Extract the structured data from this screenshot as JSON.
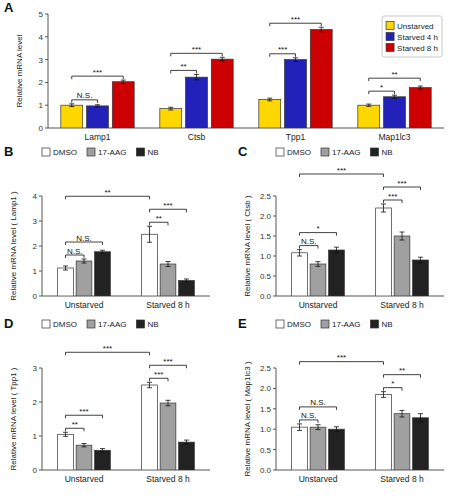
{
  "chart_data": [
    {
      "type": "bar",
      "title": "A",
      "categories": [
        "Lamp1",
        "Ctsb",
        "Tpp1",
        "Map1lc3"
      ],
      "series": [
        {
          "name": "Unstarved",
          "color": "#FFD700",
          "values": [
            1.0,
            0.85,
            1.25,
            1.0
          ],
          "errors": [
            0.06,
            0.06,
            0.06,
            0.05
          ]
        },
        {
          "name": "Starved 4 h",
          "color": "#2222BB",
          "values": [
            0.97,
            2.23,
            3.0,
            1.37
          ],
          "errors": [
            0.05,
            0.12,
            0.08,
            0.07
          ]
        },
        {
          "name": "Starved 8 h",
          "color": "#CC0000",
          "values": [
            2.03,
            3.02,
            4.32,
            1.77
          ],
          "errors": [
            0.07,
            0.08,
            0.1,
            0.07
          ]
        }
      ],
      "ylabel": "Relative mRNA level",
      "ylim": [
        0,
        5.0
      ],
      "yticks": [
        0,
        1,
        2,
        3,
        4,
        5
      ],
      "legend": "upper right",
      "grid": false,
      "annotations": [
        {
          "text": "N.S.",
          "from": {
            "category": "Lamp1",
            "series": "Unstarved"
          },
          "to": {
            "category": "Lamp1",
            "series": "Starved 4 h"
          }
        },
        {
          "text": "***",
          "from": {
            "category": "Lamp1",
            "series": "Unstarved"
          },
          "to": {
            "category": "Lamp1",
            "series": "Starved 8 h"
          }
        },
        {
          "text": "**",
          "from": {
            "category": "Ctsb",
            "series": "Unstarved"
          },
          "to": {
            "category": "Ctsb",
            "series": "Starved 4 h"
          }
        },
        {
          "text": "***",
          "from": {
            "category": "Ctsb",
            "series": "Unstarved"
          },
          "to": {
            "category": "Ctsb",
            "series": "Starved 8 h"
          }
        },
        {
          "text": "***",
          "from": {
            "category": "Tpp1",
            "series": "Unstarved"
          },
          "to": {
            "category": "Tpp1",
            "series": "Starved 4 h"
          }
        },
        {
          "text": "***",
          "from": {
            "category": "Tpp1",
            "series": "Unstarved"
          },
          "to": {
            "category": "Tpp1",
            "series": "Starved 8 h"
          }
        },
        {
          "text": "*",
          "from": {
            "category": "Map1lc3",
            "series": "Unstarved"
          },
          "to": {
            "category": "Map1lc3",
            "series": "Starved 4 h"
          }
        },
        {
          "text": "**",
          "from": {
            "category": "Map1lc3",
            "series": "Unstarved"
          },
          "to": {
            "category": "Map1lc3",
            "series": "Starved 8 h"
          }
        }
      ]
    },
    {
      "type": "bar",
      "title": "B",
      "categories": [
        "Unstarved",
        "Starved 8 h"
      ],
      "series": [
        {
          "name": "DMSO",
          "color": "#FFFFFF",
          "values": [
            1.12,
            2.47
          ],
          "errors": [
            0.08,
            0.32
          ]
        },
        {
          "name": "17-AAG",
          "color": "#A0A0A0",
          "values": [
            1.4,
            1.28
          ],
          "errors": [
            0.08,
            0.1
          ]
        },
        {
          "name": "NB",
          "color": "#222222",
          "values": [
            1.77,
            0.62
          ],
          "errors": [
            0.06,
            0.06
          ]
        }
      ],
      "ylabel": "Relative mRNA level ( Lamp1 )",
      "ylim": [
        0,
        4.0
      ],
      "yticks": [
        0,
        1,
        2,
        3,
        4
      ],
      "legend": "top",
      "grid": false,
      "annotations": [
        {
          "text": "N.S.",
          "from": {
            "category": "Unstarved",
            "series": "DMSO"
          },
          "to": {
            "category": "Unstarved",
            "series": "17-AAG"
          }
        },
        {
          "text": "N.S.",
          "from": {
            "category": "Unstarved",
            "series": "DMSO"
          },
          "to": {
            "category": "Unstarved",
            "series": "NB"
          }
        },
        {
          "text": "**",
          "from": {
            "category": "Starved 8 h",
            "series": "DMSO"
          },
          "to": {
            "category": "Starved 8 h",
            "series": "17-AAG"
          }
        },
        {
          "text": "***",
          "from": {
            "category": "Starved 8 h",
            "series": "DMSO"
          },
          "to": {
            "category": "Starved 8 h",
            "series": "NB"
          }
        },
        {
          "text": "**",
          "from": {
            "category": "Unstarved",
            "series": "DMSO"
          },
          "to": {
            "category": "Starved 8 h",
            "series": "DMSO"
          }
        }
      ]
    },
    {
      "type": "bar",
      "title": "C",
      "categories": [
        "Unstarved",
        "Starved 8 h"
      ],
      "series": [
        {
          "name": "DMSO",
          "color": "#FFFFFF",
          "values": [
            1.08,
            2.2
          ],
          "errors": [
            0.08,
            0.1
          ]
        },
        {
          "name": "17-AAG",
          "color": "#A0A0A0",
          "values": [
            0.8,
            1.5
          ],
          "errors": [
            0.06,
            0.1
          ]
        },
        {
          "name": "NB",
          "color": "#222222",
          "values": [
            1.15,
            0.9
          ],
          "errors": [
            0.07,
            0.07
          ]
        }
      ],
      "ylabel": "Relative mRNA level ( Ctsb )",
      "ylim": [
        0,
        2.5
      ],
      "yticks": [
        {
          "value": 0,
          "label": "0.0"
        },
        0.5,
        {
          "value": 1,
          "label": "1.0"
        },
        1.5,
        {
          "value": 2,
          "label": "2.0"
        },
        2.5
      ],
      "legend": "top",
      "grid": false,
      "annotations": [
        {
          "text": "N.S.",
          "from": {
            "category": "Unstarved",
            "series": "DMSO"
          },
          "to": {
            "category": "Unstarved",
            "series": "17-AAG"
          }
        },
        {
          "text": "*",
          "from": {
            "category": "Unstarved",
            "series": "DMSO"
          },
          "to": {
            "category": "Unstarved",
            "series": "NB"
          }
        },
        {
          "text": "***",
          "from": {
            "category": "Starved 8 h",
            "series": "DMSO"
          },
          "to": {
            "category": "Starved 8 h",
            "series": "17-AAG"
          }
        },
        {
          "text": "***",
          "from": {
            "category": "Starved 8 h",
            "series": "DMSO"
          },
          "to": {
            "category": "Starved 8 h",
            "series": "NB"
          }
        },
        {
          "text": "***",
          "from": {
            "category": "Unstarved",
            "series": "DMSO"
          },
          "to": {
            "category": "Starved 8 h",
            "series": "DMSO"
          }
        }
      ]
    },
    {
      "type": "bar",
      "title": "D",
      "categories": [
        "Unstarved",
        "Starved 8 h"
      ],
      "series": [
        {
          "name": "DMSO",
          "color": "#FFFFFF",
          "values": [
            1.05,
            2.5
          ],
          "errors": [
            0.06,
            0.08
          ]
        },
        {
          "name": "17-AAG",
          "color": "#A0A0A0",
          "values": [
            0.73,
            1.97
          ],
          "errors": [
            0.05,
            0.08
          ]
        },
        {
          "name": "NB",
          "color": "#222222",
          "values": [
            0.58,
            0.82
          ],
          "errors": [
            0.05,
            0.06
          ]
        }
      ],
      "ylabel": "Relative mRNA level ( Tpp1 )",
      "ylim": [
        0,
        3.0
      ],
      "yticks": [
        0,
        1,
        2,
        3
      ],
      "legend": "top",
      "grid": false,
      "annotations": [
        {
          "text": "**",
          "from": {
            "category": "Unstarved",
            "series": "DMSO"
          },
          "to": {
            "category": "Unstarved",
            "series": "17-AAG"
          }
        },
        {
          "text": "***",
          "from": {
            "category": "Unstarved",
            "series": "DMSO"
          },
          "to": {
            "category": "Unstarved",
            "series": "NB"
          }
        },
        {
          "text": "***",
          "from": {
            "category": "Starved 8 h",
            "series": "DMSO"
          },
          "to": {
            "category": "Starved 8 h",
            "series": "17-AAG"
          }
        },
        {
          "text": "***",
          "from": {
            "category": "Starved 8 h",
            "series": "DMSO"
          },
          "to": {
            "category": "Starved 8 h",
            "series": "NB"
          }
        },
        {
          "text": "***",
          "from": {
            "category": "Unstarved",
            "series": "DMSO"
          },
          "to": {
            "category": "Starved 8 h",
            "series": "DMSO"
          }
        }
      ]
    },
    {
      "type": "bar",
      "title": "E",
      "categories": [
        "Unstarved",
        "Starved 8 h"
      ],
      "series": [
        {
          "name": "DMSO",
          "color": "#FFFFFF",
          "values": [
            1.05,
            1.85
          ],
          "errors": [
            0.08,
            0.07
          ]
        },
        {
          "name": "17-AAG",
          "color": "#A0A0A0",
          "values": [
            1.05,
            1.38
          ],
          "errors": [
            0.06,
            0.08
          ]
        },
        {
          "name": "NB",
          "color": "#222222",
          "values": [
            1.0,
            1.28
          ],
          "errors": [
            0.06,
            0.1
          ]
        }
      ],
      "ylabel": "Relative mRNA level ( Map1lc3 )",
      "ylim": [
        0,
        2.5
      ],
      "yticks": [
        {
          "value": 0,
          "label": "0.0"
        },
        0.5,
        {
          "value": 1,
          "label": "1.0"
        },
        1.5,
        {
          "value": 2,
          "label": "2.0"
        },
        2.5
      ],
      "legend": "top",
      "grid": false,
      "annotations": [
        {
          "text": "N.S.",
          "from": {
            "category": "Unstarved",
            "series": "DMSO"
          },
          "to": {
            "category": "Unstarved",
            "series": "17-AAG"
          }
        },
        {
          "text": "N.S.",
          "from": {
            "category": "Unstarved",
            "series": "DMSO"
          },
          "to": {
            "category": "Unstarved",
            "series": "NB"
          }
        },
        {
          "text": "*",
          "from": {
            "category": "Starved 8 h",
            "series": "DMSO"
          },
          "to": {
            "category": "Starved 8 h",
            "series": "17-AAG"
          }
        },
        {
          "text": "**",
          "from": {
            "category": "Starved 8 h",
            "series": "DMSO"
          },
          "to": {
            "category": "Starved 8 h",
            "series": "NB"
          }
        },
        {
          "text": "***",
          "from": {
            "category": "Unstarved",
            "series": "DMSO"
          },
          "to": {
            "category": "Starved 8 h",
            "series": "DMSO"
          }
        }
      ]
    }
  ]
}
